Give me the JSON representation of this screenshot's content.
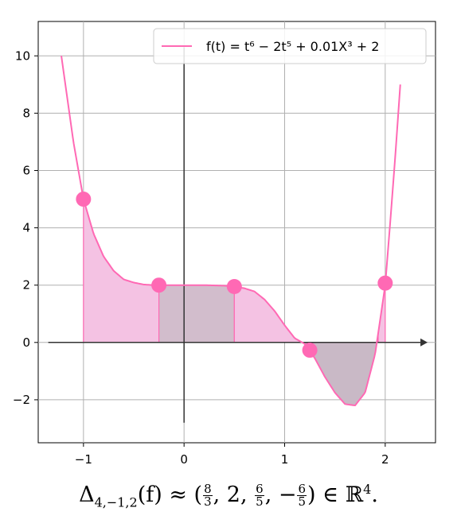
{
  "chart_data": {
    "type": "line",
    "title": "",
    "xlabel": "",
    "ylabel": "",
    "xlim": [
      -1.45,
      2.5
    ],
    "ylim": [
      -3.5,
      11.2
    ],
    "xticks": [
      -1,
      0,
      1,
      2
    ],
    "xtick_labels": [
      "−1",
      "0",
      "1",
      "2"
    ],
    "yticks": [
      -2,
      0,
      2,
      4,
      6,
      8,
      10
    ],
    "ytick_labels": [
      "−2",
      "0",
      "2",
      "4",
      "6",
      "8",
      "10"
    ],
    "grid": true,
    "legend_position": "top-right",
    "series": [
      {
        "name": "f(t) = t⁶ − 2t⁵ + 0.01X³ + 2",
        "color": "#ff69b4",
        "x": [
          -1.22,
          -1.1,
          -1.0,
          -0.9,
          -0.8,
          -0.7,
          -0.6,
          -0.5,
          -0.4,
          -0.3,
          -0.2,
          -0.1,
          0.0,
          0.1,
          0.2,
          0.3,
          0.4,
          0.5,
          0.6,
          0.7,
          0.8,
          0.9,
          1.0,
          1.1,
          1.2,
          1.3,
          1.4,
          1.5,
          1.6,
          1.7,
          1.8,
          1.9,
          2.0,
          2.05,
          2.1,
          2.15
        ],
        "y": [
          10.0,
          7.0,
          5.0,
          3.8,
          3.0,
          2.5,
          2.2,
          2.09,
          2.02,
          2.0,
          2.0,
          2.0,
          2.0,
          2.0,
          2.0,
          1.99,
          1.98,
          1.95,
          1.89,
          1.78,
          1.5,
          1.1,
          0.6,
          0.15,
          -0.05,
          -0.55,
          -1.2,
          -1.75,
          -2.15,
          -2.2,
          -1.75,
          -0.4,
          2.0,
          4.2,
          6.5,
          9.0
        ]
      }
    ],
    "points": [
      {
        "x": -1.0,
        "y": 5.0
      },
      {
        "x": -0.25,
        "y": 2.0
      },
      {
        "x": 0.5,
        "y": 1.95
      },
      {
        "x": 1.25,
        "y": -0.27
      },
      {
        "x": 2.0,
        "y": 2.07
      }
    ],
    "shaded_regions": [
      {
        "from": -1.0,
        "to": -0.25,
        "fill": "#f4c2e3"
      },
      {
        "from": -0.25,
        "to": 0.5,
        "fill": "#d2bdcc"
      },
      {
        "from": 0.5,
        "to": 1.19,
        "fill": "#f4c2e3"
      },
      {
        "from": 1.19,
        "to": 1.93,
        "fill": "#c9b9c6"
      },
      {
        "from": 1.93,
        "to": 2.0,
        "fill": "#f4c2e3"
      }
    ],
    "arrow_axes": {
      "x_arrow_from": -1.35,
      "x_arrow_to": 2.35,
      "y_axis_from": -2.8,
      "y_axis_to": 10.3
    }
  },
  "caption": {
    "prefix": "Δ",
    "subscript": "4,−1,2",
    "func": "(f) ≈ (",
    "frac1_num": "8",
    "frac1_den": "3",
    "middle": ", 2, ",
    "frac2_num": "6",
    "frac2_den": "5",
    "sep": ", −",
    "frac3_num": "6",
    "frac3_den": "5",
    "suffix": ") ∈ ℝ",
    "superscript": "4",
    "end": "."
  }
}
